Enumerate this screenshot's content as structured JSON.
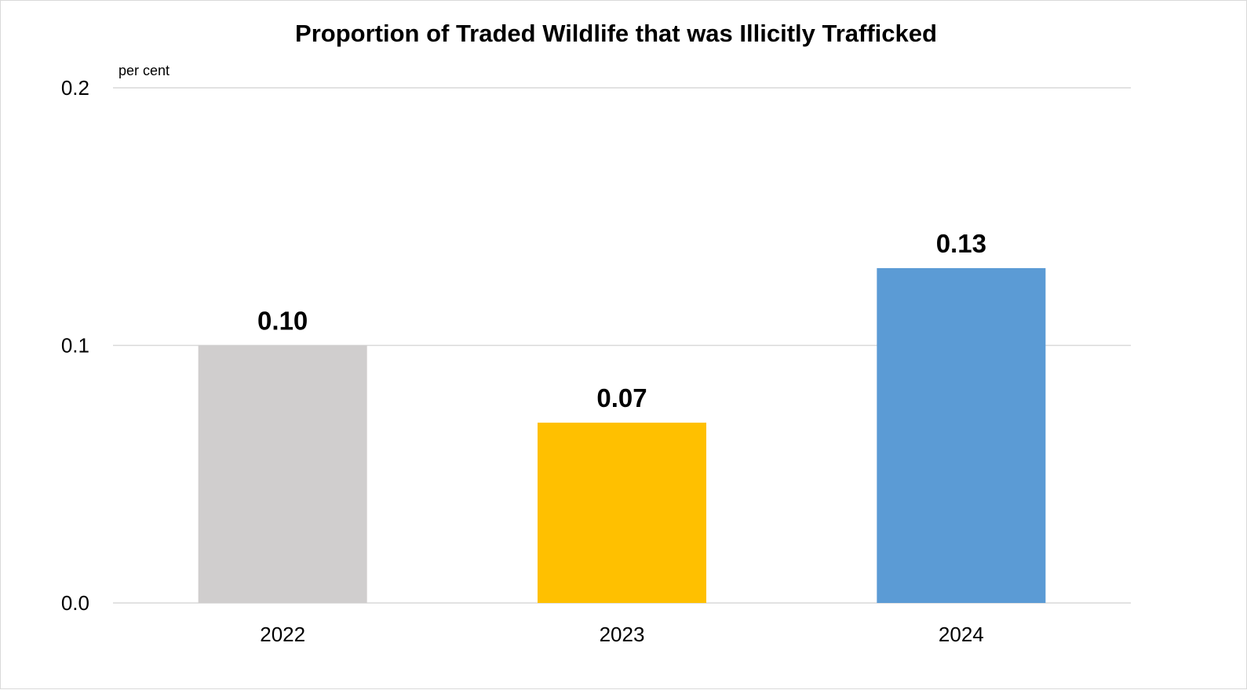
{
  "chart_data": {
    "type": "bar",
    "title": "Proportion of Traded Wildlife that was Illicitly Trafficked",
    "unit_label": "per cent",
    "xlabel": "",
    "ylabel": "",
    "categories": [
      "2022",
      "2023",
      "2024"
    ],
    "values": [
      0.1,
      0.07,
      0.13
    ],
    "data_labels": [
      "0.10",
      "0.07",
      "0.13"
    ],
    "bar_colors": [
      "#d0cece",
      "#ffc000",
      "#5b9bd5"
    ],
    "ylim": [
      0,
      0.2
    ],
    "yticks": [
      0.0,
      0.1,
      0.2
    ],
    "ytick_labels": [
      "0.0",
      "0.1",
      "0.2"
    ],
    "grid": true,
    "gridline_color": "#d9d9d9",
    "legend": "none"
  }
}
